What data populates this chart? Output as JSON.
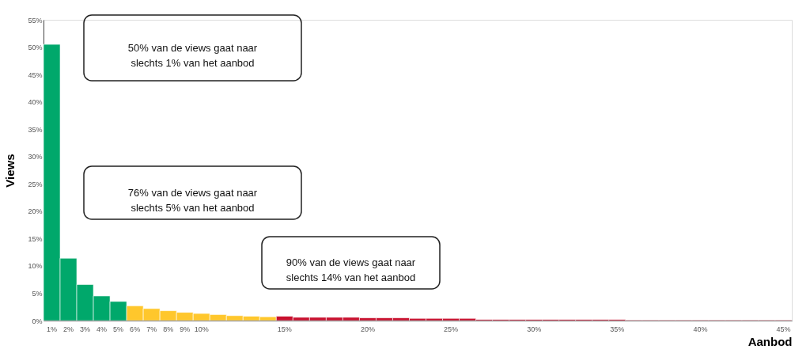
{
  "chart_data": {
    "type": "bar",
    "xlabel": "Aanbod",
    "ylabel": "Views",
    "categories": [
      "1%",
      "2%",
      "3%",
      "4%",
      "5%",
      "6%",
      "7%",
      "8%",
      "9%",
      "10%",
      null,
      null,
      null,
      null,
      "15%",
      null,
      null,
      null,
      null,
      "20%",
      null,
      null,
      null,
      null,
      "25%",
      null,
      null,
      null,
      null,
      "30%",
      null,
      null,
      null,
      null,
      "35%",
      null,
      null,
      null,
      null,
      "40%",
      null,
      null,
      null,
      null,
      "45%"
    ],
    "values": [
      50.5,
      11.4,
      6.6,
      4.5,
      3.5,
      2.7,
      2.2,
      1.8,
      1.5,
      1.3,
      1.1,
      0.9,
      0.8,
      0.7,
      0.8,
      0.6,
      0.6,
      0.6,
      0.6,
      0.5,
      0.5,
      0.5,
      0.4,
      0.4,
      0.4,
      0.4,
      0.2,
      0.2,
      0.2,
      0.2,
      0.2,
      0.2,
      0.2,
      0.2,
      0.2,
      0.1,
      0.1,
      0.1,
      0.1,
      0.1,
      0.1,
      0.1,
      0.1,
      0.1,
      0.1
    ],
    "colors": [
      "#00a86b",
      "#00a86b",
      "#00a86b",
      "#00a86b",
      "#00a86b",
      "#ffc72c",
      "#ffc72c",
      "#ffc72c",
      "#ffc72c",
      "#ffc72c",
      "#ffc72c",
      "#ffc72c",
      "#ffc72c",
      "#ffc72c",
      "#c8102e",
      "#c8102e",
      "#c8102e",
      "#c8102e",
      "#c8102e",
      "#c8102e",
      "#c8102e",
      "#c8102e",
      "#c8102e",
      "#c8102e",
      "#c8102e",
      "#c8102e",
      "#c8102e",
      "#c8102e",
      "#c8102e",
      "#c8102e",
      "#c8102e",
      "#c8102e",
      "#c8102e",
      "#c8102e",
      "#c8102e",
      "#c8102e",
      "#c8102e",
      "#c8102e",
      "#c8102e",
      "#c8102e",
      "#c8102e",
      "#c8102e",
      "#c8102e",
      "#c8102e",
      "#c8102e"
    ],
    "ylim": [
      0,
      55
    ],
    "yticks": [
      {
        "value": 0,
        "label": "0%"
      },
      {
        "value": 5,
        "label": "5%"
      },
      {
        "value": 10,
        "label": "10%"
      },
      {
        "value": 15,
        "label": "15%"
      },
      {
        "value": 20,
        "label": "20%"
      },
      {
        "value": 25,
        "label": "25%"
      },
      {
        "value": 30,
        "label": "30%"
      },
      {
        "value": 35,
        "label": "35%"
      },
      {
        "value": 40,
        "label": "40%"
      },
      {
        "value": 45,
        "label": "45%"
      },
      {
        "value": 50,
        "label": "50%"
      },
      {
        "value": 55,
        "label": "55%"
      }
    ],
    "grid": false,
    "annotations": [
      "50% van de views gaat naar slechts 1% van het aanbod",
      "76% van de views gaat naar slechts 5% van het aanbod",
      "90% van de views gaat naar slechts 14% van het aanbod"
    ]
  }
}
